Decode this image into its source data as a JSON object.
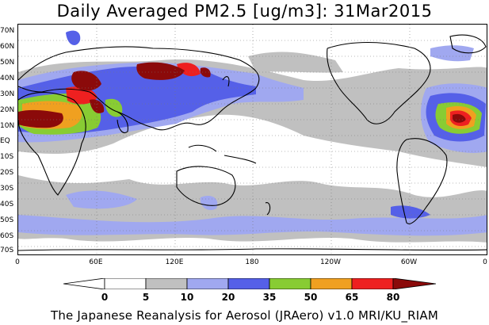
{
  "title": "Daily Averaged PM2.5 [ug/m3]: 31Mar2015",
  "footer": "The Japanese Reanalysis for Aerosol (JRAero) v1.0 MRI/KU_RIAM",
  "map": {
    "lat_labels": [
      "70N",
      "60N",
      "50N",
      "40N",
      "30N",
      "20N",
      "10N",
      "EQ",
      "10S",
      "20S",
      "30S",
      "40S",
      "50S",
      "60S",
      "70S"
    ],
    "lon_labels": [
      "0",
      "60E",
      "120E",
      "180",
      "120W",
      "60W",
      "0"
    ]
  },
  "legend": {
    "labels": [
      "0",
      "5",
      "10",
      "20",
      "35",
      "50",
      "65",
      "80"
    ],
    "colors": {
      "under": "#ffffff",
      "c0_5": "#ffffff",
      "c5_10": "#c0c0c0",
      "c10_20": "#a0a8f0",
      "c20_35": "#5560e8",
      "c35_50": "#88cc33",
      "c50_65": "#f0a020",
      "c65_80": "#ee2020",
      "over": "#8b0a0a"
    }
  }
}
